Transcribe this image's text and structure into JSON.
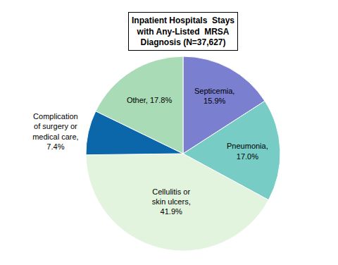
{
  "chart_data": {
    "type": "pie",
    "title": "Inpatient Hospitals  Stays with Any-Listed  MRSA Diagnosis (N=37,627)",
    "categories": [
      "Septicemia",
      "Pneumonia",
      "Cellulitis or skin ulcers",
      "Complication of surgery or medical care",
      "Other"
    ],
    "values": [
      15.9,
      17.0,
      41.9,
      7.4,
      17.8
    ],
    "value_labels": [
      "Septicemia, 15.9%",
      "Pneumonia, 17.0%",
      "Cellulitis or skin ulcers, 41.9%",
      "Complication of surgery or medical care, 7.4%",
      "Other, 17.8%"
    ],
    "colors": [
      "#7b7fcf",
      "#77cdc5",
      "#e2f4de",
      "#0b67a9",
      "#a9dcb6"
    ],
    "data_labels": true
  }
}
